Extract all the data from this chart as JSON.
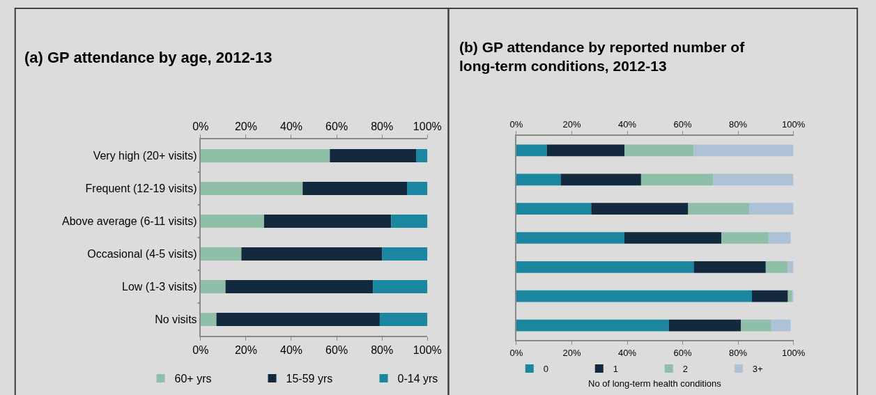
{
  "chart_data": [
    {
      "type": "bar",
      "orientation": "horizontal",
      "stacked": true,
      "title": "(a) GP attendance by age, 2012-13",
      "categories": [
        "Very high (20+ visits)",
        "Frequent (12-19 visits)",
        "Above average (6-11 visits)",
        "Occasional (4-5 visits)",
        "Low (1-3 visits)",
        "No visits"
      ],
      "series": [
        {
          "name": "60+ yrs",
          "color": "#8fbfa8",
          "values": [
            57,
            45,
            28,
            18,
            11,
            7
          ]
        },
        {
          "name": "15-59 yrs",
          "color": "#13293d",
          "values": [
            38,
            46,
            56,
            62,
            65,
            72
          ]
        },
        {
          "name": "0-14 yrs",
          "color": "#1a86a0",
          "values": [
            5,
            9,
            16,
            20,
            24,
            21
          ]
        }
      ],
      "xlim": [
        0,
        100
      ],
      "xticks": [
        {
          "value": 0,
          "label": "0%"
        },
        {
          "value": 20,
          "label": "20%"
        },
        {
          "value": 40,
          "label": "40%"
        },
        {
          "value": 60,
          "label": "60%"
        },
        {
          "value": 80,
          "label": "80%"
        },
        {
          "value": 100,
          "label": "100%"
        }
      ],
      "x2lim": [
        0,
        100
      ],
      "x2ticks": [
        {
          "value": 0,
          "label": "0%"
        },
        {
          "value": 20,
          "label": "20%"
        },
        {
          "value": 40,
          "label": "40%"
        },
        {
          "value": 60,
          "label": "60%"
        },
        {
          "value": 80,
          "label": "80%"
        },
        {
          "value": 100,
          "label": "100%"
        }
      ],
      "legend": "bottom",
      "grid": false
    },
    {
      "type": "bar",
      "orientation": "horizontal",
      "stacked": true,
      "title": "(b) GP attendance by reported number of long-term conditions, 2012-13",
      "categories": [
        null,
        null,
        null,
        null,
        null,
        null,
        null
      ],
      "series": [
        {
          "name": "0",
          "color": "#1a86a0",
          "values": [
            11,
            16,
            27,
            39,
            64,
            85,
            55
          ]
        },
        {
          "name": "1",
          "color": "#13293d",
          "values": [
            28,
            29,
            35,
            35,
            26,
            13,
            26
          ]
        },
        {
          "name": "2",
          "color": "#8fbfa8",
          "values": [
            25,
            26,
            22,
            17,
            8,
            1.5,
            11
          ]
        },
        {
          "name": "3+",
          "color": "#aec2d7",
          "values": [
            36,
            29,
            16,
            8,
            2,
            0.5,
            7
          ]
        }
      ],
      "xlabel": "No of long-term health conditions",
      "xlim": [
        0,
        100
      ],
      "xticks": [
        {
          "value": 0,
          "label": "0%"
        },
        {
          "value": 20,
          "label": "20%"
        },
        {
          "value": 40,
          "label": "40%"
        },
        {
          "value": 60,
          "label": "60%"
        },
        {
          "value": 80,
          "label": "80%"
        },
        {
          "value": 100,
          "label": "100%"
        }
      ],
      "x2lim": [
        0,
        100
      ],
      "x2ticks": [
        {
          "value": 0,
          "label": "0%"
        },
        {
          "value": 20,
          "label": "20%"
        },
        {
          "value": 40,
          "label": "40%"
        },
        {
          "value": 60,
          "label": "60%"
        },
        {
          "value": 80,
          "label": "80%"
        },
        {
          "value": 100,
          "label": "100%"
        }
      ],
      "tick_labels": "x",
      "legend": "bottom",
      "grid": false
    }
  ]
}
